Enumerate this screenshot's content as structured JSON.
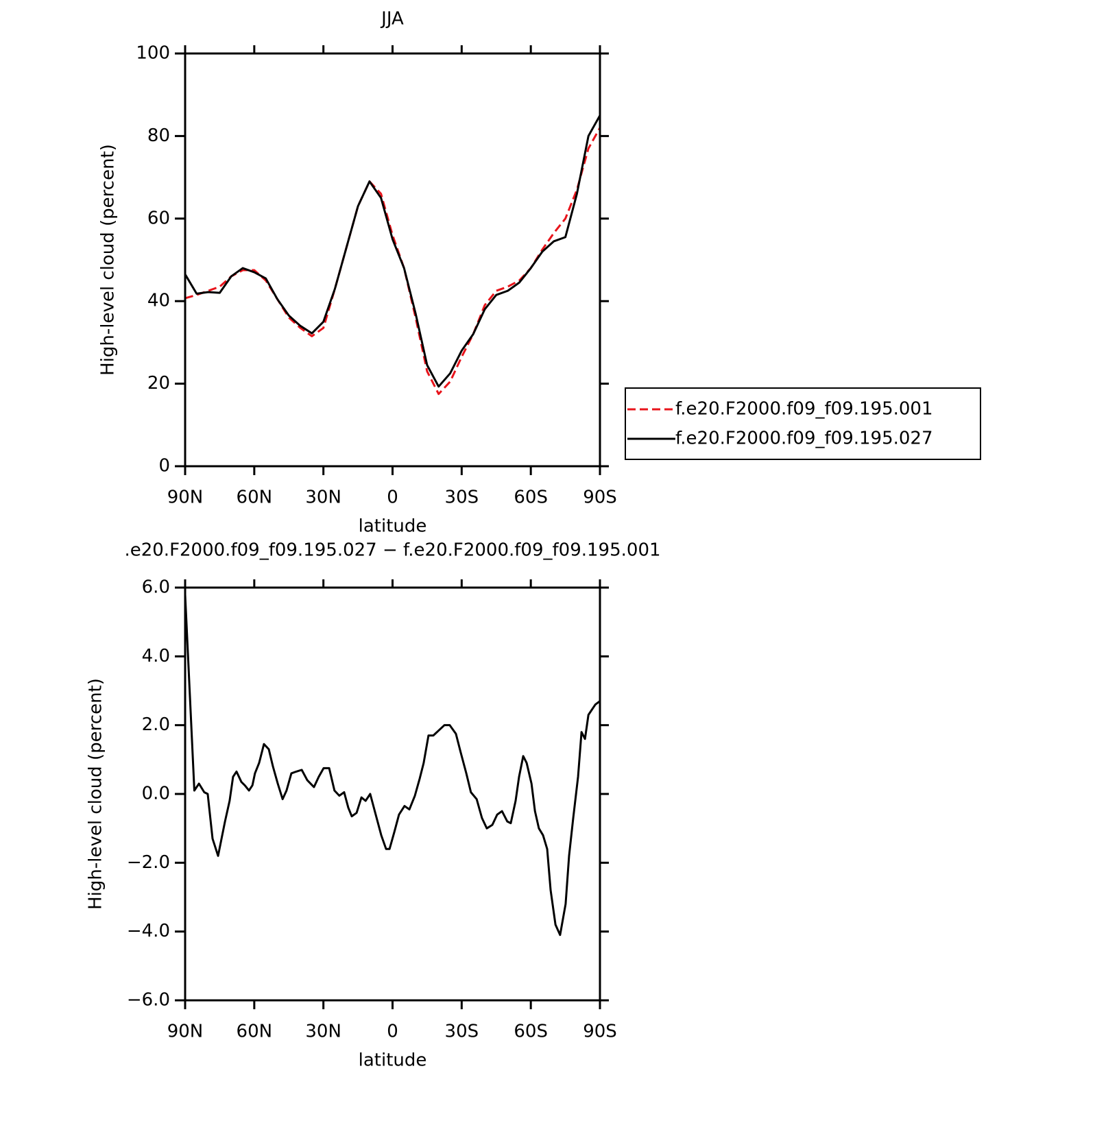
{
  "chart_data": [
    {
      "type": "line",
      "title": "JJA",
      "xlabel": "latitude",
      "ylabel": "High-level cloud (percent)",
      "x": [
        90,
        85,
        80,
        75,
        70,
        65,
        60,
        55,
        50,
        45,
        40,
        35,
        30,
        25,
        20,
        15,
        10,
        5,
        0,
        -5,
        -10,
        -15,
        -20,
        -25,
        -30,
        -35,
        -40,
        -45,
        -50,
        -55,
        -60,
        -65,
        -70,
        -75,
        -80,
        -85,
        -90
      ],
      "series": [
        {
          "name": "f.e20.F2000.f09_f09.195.001",
          "color": "#e8141b",
          "style": "dashed",
          "values": [
            40.7,
            41.5,
            42.5,
            43.5,
            46,
            47.5,
            47.5,
            45,
            40.5,
            36,
            33.5,
            31.5,
            33.5,
            43,
            53,
            63,
            69,
            66,
            56,
            48,
            36,
            23,
            17.5,
            20.5,
            26.5,
            32,
            39,
            42.5,
            43.5,
            45,
            48,
            52.5,
            56.5,
            60,
            67,
            77,
            82
          ]
        },
        {
          "name": "f.e20.F2000.f09_f09.195.027",
          "color": "#000000",
          "style": "solid",
          "values": [
            46.5,
            41.8,
            42.2,
            42,
            46,
            48,
            47,
            45.5,
            40.5,
            36.5,
            34,
            32.2,
            35,
            43,
            53,
            63,
            69,
            65,
            55,
            48,
            37,
            24.5,
            19.3,
            22.5,
            28,
            32,
            38,
            41.5,
            42.5,
            44.5,
            48,
            52,
            54.5,
            55.5,
            66,
            80,
            85
          ]
        }
      ],
      "xlim": [
        90,
        -90
      ],
      "xticks": [
        {
          "value": 90,
          "label": "90N"
        },
        {
          "value": 60,
          "label": "60N"
        },
        {
          "value": 30,
          "label": "30N"
        },
        0,
        {
          "value": -30,
          "label": "30S"
        },
        {
          "value": -60,
          "label": "60S"
        },
        {
          "value": -90,
          "label": "90S"
        }
      ],
      "ylim": [
        0,
        100
      ],
      "yticks": [
        0,
        20,
        40,
        60,
        80,
        100
      ],
      "grid": false
    },
    {
      "type": "line",
      "title": ".e20.F2000.f09_f09.195.027 − f.e20.F2000.f09_f09.195.001",
      "xlabel": "latitude",
      "ylabel": "High-level cloud (percent)",
      "x": [
        90,
        86,
        84,
        81.7,
        80.2,
        78.1,
        75.7,
        74.5,
        72.7,
        70.7,
        69.2,
        67.7,
        65.6,
        64.1,
        62.3,
        60.8,
        59.7,
        57.9,
        55.8,
        53.7,
        51.9,
        49.8,
        47.7,
        46,
        43.9,
        41.8,
        39.4,
        37,
        34.1,
        32,
        29.9,
        27.5,
        25.2,
        23.1,
        21,
        19.2,
        17.7,
        15.6,
        13.5,
        11.7,
        9.7,
        7.3,
        4.9,
        2.8,
        1.3,
        -0.8,
        -2.8,
        -5.2,
        -7.3,
        -9.7,
        -11.8,
        -13.5,
        -15.6,
        -17.7,
        -20.1,
        -22.5,
        -24.8,
        -27.5,
        -29.6,
        -32,
        -34,
        -36.5,
        -38.8,
        -40.9,
        -43.3,
        -45.4,
        -47.5,
        -49.8,
        -51.3,
        -53.4,
        -54.9,
        -56.7,
        -58.2,
        -60.3,
        -61.8,
        -63.5,
        -65.3,
        -67.1,
        -68.6,
        -70.7,
        -72.7,
        -75.1,
        -76.6,
        -78.4,
        -80.5,
        -82,
        -83.5,
        -85,
        -88,
        -90
      ],
      "series": [
        {
          "color": "#000000",
          "style": "solid",
          "values": [
            5.8,
            0.1,
            0.3,
            0.05,
            0,
            -1.3,
            -1.8,
            -1.4,
            -0.8,
            -0.2,
            0.5,
            0.65,
            0.35,
            0.25,
            0.1,
            0.25,
            0.6,
            0.9,
            1.45,
            1.3,
            0.8,
            0.3,
            -0.15,
            0.1,
            0.6,
            0.65,
            0.7,
            0.4,
            0.2,
            0.5,
            0.75,
            0.75,
            0.1,
            -0.05,
            0.05,
            -0.4,
            -0.65,
            -0.55,
            -0.1,
            -0.2,
            0,
            -0.6,
            -1.2,
            -1.6,
            -1.6,
            -1.1,
            -0.6,
            -0.35,
            -0.45,
            -0.05,
            0.45,
            0.9,
            1.7,
            1.7,
            1.85,
            2.0,
            2.0,
            1.75,
            1.2,
            0.6,
            0.05,
            -0.15,
            -0.7,
            -1.0,
            -0.9,
            -0.6,
            -0.5,
            -0.8,
            -0.85,
            -0.2,
            0.5,
            1.1,
            0.9,
            0.3,
            -0.5,
            -1.0,
            -1.2,
            -1.6,
            -2.8,
            -3.8,
            -4.1,
            -3.2,
            -1.8,
            -0.7,
            0.5,
            1.8,
            1.6,
            2.3,
            2.6,
            2.7
          ]
        }
      ],
      "xlim": [
        90,
        -90
      ],
      "xticks": [
        {
          "value": 90,
          "label": "90N"
        },
        {
          "value": 60,
          "label": "60N"
        },
        {
          "value": 30,
          "label": "30N"
        },
        0,
        {
          "value": -30,
          "label": "30S"
        },
        {
          "value": -60,
          "label": "60S"
        },
        {
          "value": -90,
          "label": "90S"
        }
      ],
      "ylim": [
        -6,
        6
      ],
      "yticks": [
        {
          "value": -6,
          "label": "−6.0"
        },
        {
          "value": -4,
          "label": "−4.0"
        },
        {
          "value": -2,
          "label": "−2.0"
        },
        {
          "value": 0,
          "label": "0.0"
        },
        {
          "value": 2,
          "label": "2.0"
        },
        {
          "value": 4,
          "label": "4.0"
        },
        {
          "value": 6,
          "label": "6.0"
        }
      ],
      "grid": false
    }
  ]
}
